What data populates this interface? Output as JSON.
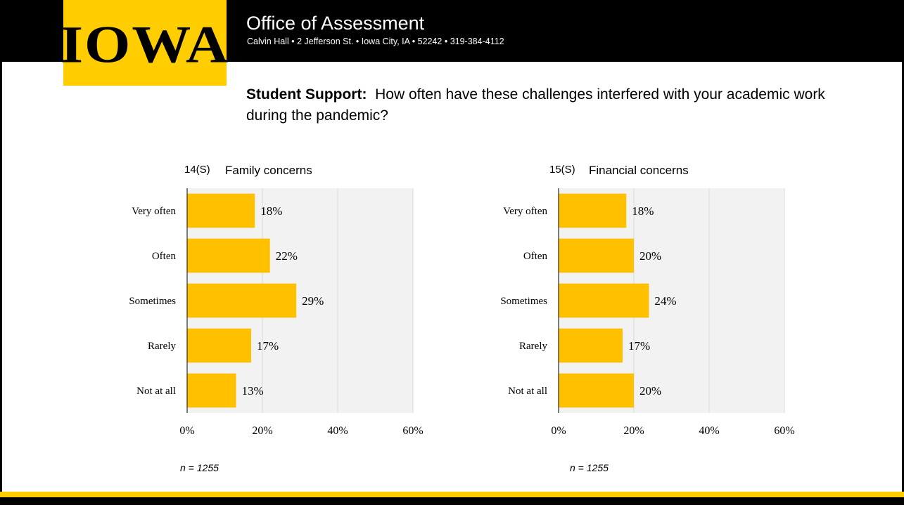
{
  "header": {
    "logo_text": "IOWA",
    "office_title": "Office of Assessment",
    "office_address": "Calvin Hall • 2 Jefferson St. • Iowa City, IA • 52242 • 319-384-4112"
  },
  "headline": {
    "bold": "Student Support:",
    "text": "How often have these challenges interfered with your academic work during the pandemic?"
  },
  "colors": {
    "bar": "#FFC000",
    "plot_bg": "#F2F2F2",
    "gold": "#FFCD00"
  },
  "chart_data": [
    {
      "type": "bar",
      "orientation": "horizontal",
      "id_label": "14(S)",
      "title": "Family concerns",
      "categories": [
        "Very often",
        "Often",
        "Sometimes",
        "Rarely",
        "Not at all"
      ],
      "values": [
        18,
        22,
        29,
        17,
        13
      ],
      "value_labels": [
        "18%",
        "22%",
        "29%",
        "17%",
        "13%"
      ],
      "xlim": [
        0,
        60
      ],
      "xticks": [
        "0%",
        "20%",
        "40%",
        "60%"
      ],
      "grid": true,
      "n_note": "n = 1255"
    },
    {
      "type": "bar",
      "orientation": "horizontal",
      "id_label": "15(S)",
      "title": "Financial concerns",
      "categories": [
        "Very often",
        "Often",
        "Sometimes",
        "Rarely",
        "Not at all"
      ],
      "values": [
        18,
        20,
        24,
        17,
        20
      ],
      "value_labels": [
        "18%",
        "20%",
        "24%",
        "17%",
        "20%"
      ],
      "xlim": [
        0,
        60
      ],
      "xticks": [
        "0%",
        "20%",
        "40%",
        "60%"
      ],
      "grid": true,
      "n_note": "n = 1255"
    }
  ]
}
